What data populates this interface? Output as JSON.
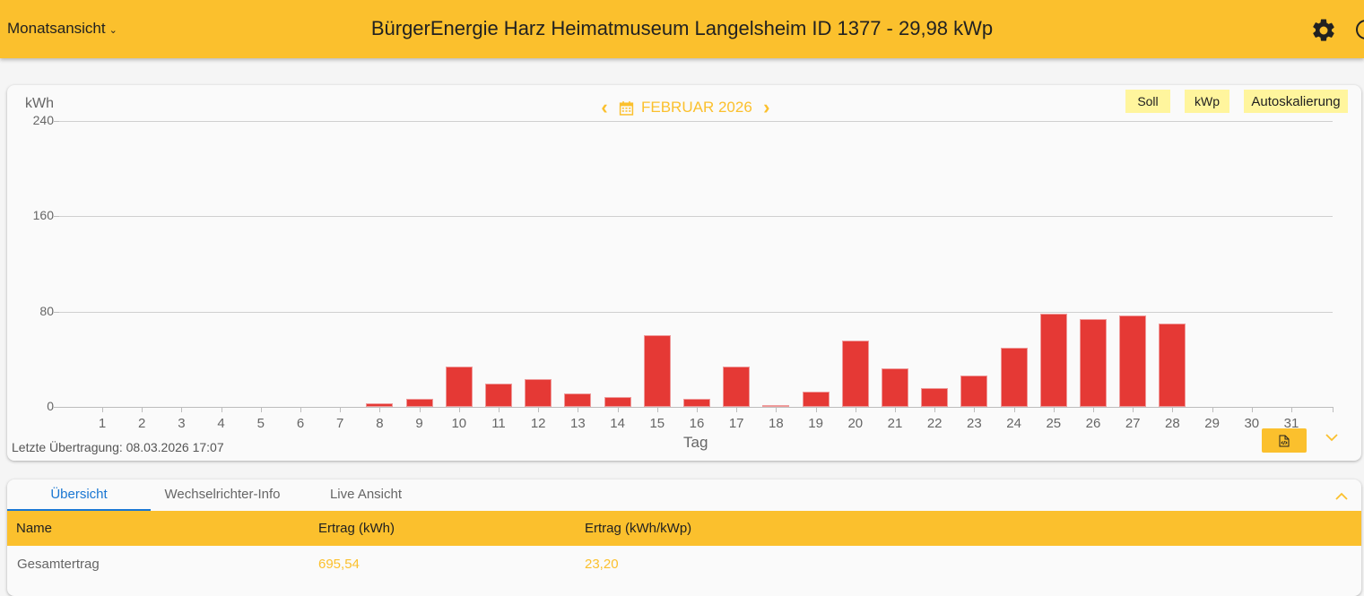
{
  "header": {
    "view_select": "Monatsansicht",
    "title": "BürgerEnergie Harz Heimatmuseum Langelsheim ID 1377 - 29,98 kWp",
    "icons": [
      "gear-icon",
      "power-icon"
    ]
  },
  "chart_header": {
    "unit_label": "kWh",
    "month_label": "FEBRUAR 2026",
    "prev_icon": "chevron-left-icon",
    "next_icon": "chevron-right-icon",
    "calendar_icon": "calendar-icon",
    "toggles": {
      "soll": "Soll",
      "kwp": "kWp",
      "auto": "Autoskalierung"
    }
  },
  "chart_footer": {
    "last_transmission": "Letzte Übertragung: 08.03.2026 17:07",
    "export_icon": "file-code-icon",
    "expand_icon": "chevron-down-icon"
  },
  "colors": {
    "accent": "#fbc02d",
    "bar": "#e53935",
    "toggle_bg": "#fff59d",
    "tab_active": "#1976d2"
  },
  "chart_data": {
    "type": "bar",
    "title": "FEBRUAR 2026",
    "xlabel": "Tag",
    "ylabel": "kWh",
    "ylim": [
      0,
      240
    ],
    "yticks": [
      0,
      80,
      160,
      240
    ],
    "grid": true,
    "legend": null,
    "categories": [
      "1",
      "2",
      "3",
      "4",
      "5",
      "6",
      "7",
      "8",
      "9",
      "10",
      "11",
      "12",
      "13",
      "14",
      "15",
      "16",
      "17",
      "18",
      "19",
      "20",
      "21",
      "22",
      "23",
      "24",
      "25",
      "26",
      "27",
      "28",
      "29",
      "30",
      "31"
    ],
    "values": [
      0,
      0,
      0,
      0,
      0,
      0,
      0,
      3,
      7,
      34,
      19.5,
      23,
      11,
      8,
      60,
      6.5,
      34,
      1.5,
      13,
      55.5,
      32,
      16,
      26,
      50,
      78,
      73.5,
      77,
      70,
      0,
      0,
      0
    ]
  },
  "tabs": [
    {
      "label": "Übersicht",
      "active": true
    },
    {
      "label": "Wechselrichter-Info",
      "active": false
    },
    {
      "label": "Live Ansicht",
      "active": false
    }
  ],
  "table": {
    "columns": [
      "Name",
      "Ertrag (kWh)",
      "Ertrag (kWh/kWp)"
    ],
    "rows": [
      [
        "Gesamtertrag",
        "695,54",
        "23,20"
      ]
    ]
  }
}
